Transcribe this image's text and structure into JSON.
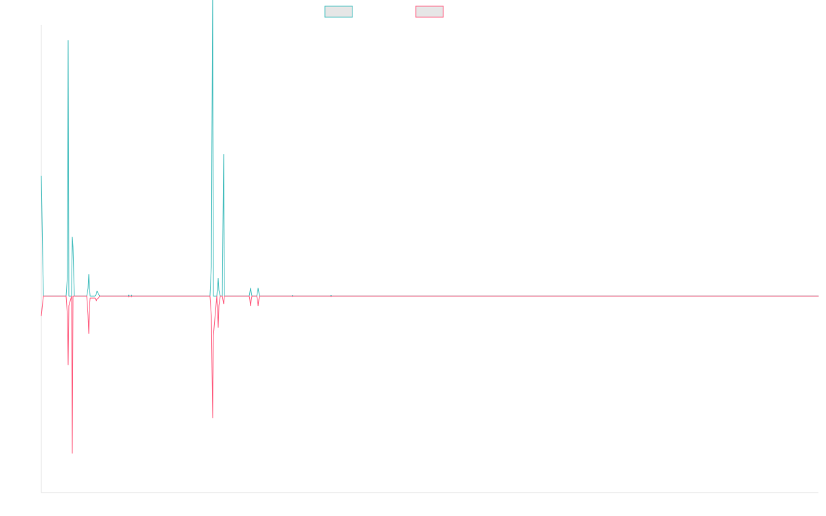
{
  "chart_data": {
    "type": "line",
    "title": "",
    "xlabel": "",
    "ylabel": "",
    "grid": false,
    "legend_position": "top-center",
    "x_tick_labels_visible": false,
    "y_tick_labels_visible": false,
    "x": [
      0,
      1,
      2,
      3,
      4,
      5,
      6,
      7,
      8,
      9,
      10,
      11,
      12,
      13,
      14,
      15,
      16,
      17,
      18,
      19,
      20,
      21,
      22,
      23,
      24,
      25,
      26,
      27,
      28,
      29,
      30,
      31,
      32,
      33,
      34,
      35,
      36,
      37,
      38,
      39,
      40,
      41,
      42,
      43,
      44,
      45,
      46,
      47,
      48,
      49,
      50,
      51,
      52,
      53,
      54,
      55,
      56,
      57,
      58,
      59,
      60,
      61,
      62,
      63,
      64,
      65,
      66,
      67,
      68,
      69,
      70,
      71,
      72,
      73,
      74,
      75,
      76,
      77,
      78,
      79,
      80,
      81,
      82,
      83,
      84,
      85,
      86,
      87,
      88,
      89,
      90,
      91,
      92,
      93,
      94,
      95,
      96,
      97,
      98,
      99,
      100,
      101,
      102,
      103,
      104,
      105,
      106,
      107,
      108,
      109,
      110,
      111,
      112,
      113,
      114,
      115,
      116,
      117,
      118,
      119,
      120,
      121,
      122,
      123,
      124,
      125,
      126,
      127,
      128,
      129,
      130,
      131,
      132,
      133,
      134,
      135,
      136,
      137,
      138,
      139,
      140,
      141,
      142,
      143,
      144,
      145,
      146,
      147,
      148,
      149,
      150,
      151,
      152,
      153,
      154,
      155,
      156,
      157,
      158,
      159,
      160,
      161,
      162,
      163,
      164,
      165,
      166,
      167,
      168,
      169,
      170,
      171,
      172,
      173,
      174,
      175,
      176,
      177,
      178,
      179,
      180,
      181,
      182,
      183,
      184,
      185,
      186,
      187,
      188,
      189,
      190,
      191,
      192,
      193,
      194,
      195,
      196,
      197,
      198,
      199,
      200,
      201,
      202,
      203,
      204,
      205,
      206,
      207,
      208,
      209,
      210,
      211,
      212,
      213,
      214,
      215,
      216,
      217,
      218,
      219,
      220,
      221,
      222,
      223,
      224,
      225,
      226,
      227,
      228,
      229,
      230,
      231,
      232,
      233,
      234,
      235,
      236,
      237,
      238,
      239,
      240,
      241,
      242,
      243,
      244,
      245,
      246,
      247,
      248,
      249,
      250,
      251,
      252,
      253,
      254,
      255,
      256,
      257,
      258,
      259,
      260,
      261,
      262,
      263,
      264,
      265,
      266,
      267,
      268,
      269,
      270,
      271,
      272,
      273,
      274,
      275,
      276,
      277,
      278,
      279,
      280,
      281,
      282,
      283,
      284,
      285,
      286,
      287,
      288,
      289,
      290,
      291,
      292,
      293,
      294,
      295,
      296,
      297,
      298,
      299,
      300,
      301,
      302,
      303,
      304,
      305,
      306,
      307,
      308,
      309,
      310,
      311,
      312,
      313,
      314,
      315,
      316,
      317,
      318,
      319,
      320,
      321,
      322,
      323,
      324,
      325,
      326,
      327,
      328,
      329,
      330,
      331,
      332,
      333,
      334,
      335,
      336,
      337,
      338,
      339,
      340,
      341,
      342,
      343,
      344,
      345,
      346,
      347,
      348,
      349,
      350,
      351,
      352,
      353,
      354,
      355,
      356,
      357,
      358,
      359,
      360,
      361,
      362,
      363,
      364,
      365,
      366,
      367,
      368,
      369,
      370,
      371,
      372,
      373,
      374,
      375,
      376,
      377,
      378,
      379,
      380,
      381,
      382,
      383,
      384,
      385,
      386,
      387,
      388,
      389,
      390,
      391,
      392,
      393,
      394,
      395,
      396,
      397,
      398,
      399,
      400,
      401,
      402,
      403,
      404,
      405,
      406,
      407,
      408,
      409,
      410,
      411,
      412,
      413,
      414,
      415,
      416,
      417,
      418,
      419,
      420,
      421,
      422,
      423,
      424,
      425,
      426,
      427,
      428,
      429,
      430,
      431,
      432,
      433,
      434,
      435,
      436,
      437,
      438,
      439,
      440,
      441,
      442,
      443,
      444,
      445,
      446,
      447,
      448,
      449,
      450,
      451,
      452,
      453,
      454,
      455,
      456,
      457,
      458,
      459,
      460,
      461,
      462,
      463,
      464,
      465,
      466,
      467,
      468,
      469,
      470,
      471,
      472,
      473,
      474,
      475,
      476,
      477,
      478,
      479,
      480,
      481,
      482,
      483,
      484,
      485,
      486,
      487,
      488,
      489,
      490,
      491,
      492,
      493,
      494,
      495,
      496,
      497,
      498,
      499,
      500,
      501,
      502,
      503,
      504,
      505,
      506,
      507,
      508,
      509,
      510,
      511,
      512,
      513,
      514,
      515,
      516,
      517,
      518,
      519,
      520,
      521,
      522,
      523,
      524,
      525,
      526,
      527,
      528,
      529,
      530,
      531,
      532,
      533,
      534,
      535,
      536,
      537,
      538,
      539,
      540,
      541,
      542,
      543,
      544,
      545,
      546,
      547,
      548,
      549,
      550,
      551,
      552,
      553,
      554,
      555,
      556,
      557,
      558,
      559,
      560,
      561,
      562,
      563,
      564,
      565,
      566,
      567,
      568,
      569,
      570,
      571,
      572,
      573,
      574,
      575,
      576,
      577,
      578,
      579,
      580,
      581,
      582,
      583,
      584,
      585,
      586,
      587,
      588,
      589,
      590,
      591,
      592,
      593,
      594,
      595,
      596,
      597,
      598,
      599,
      600,
      601,
      602,
      603,
      604,
      605,
      606,
      607,
      608,
      609,
      610,
      611,
      612,
      613,
      614,
      615,
      616,
      617,
      618,
      619,
      620,
      621,
      622,
      623,
      624,
      625,
      626,
      627,
      628,
      629,
      630,
      631,
      632,
      633,
      634,
      635,
      636,
      637,
      638,
      639,
      640,
      641,
      642,
      643,
      644,
      645,
      646,
      647,
      648,
      649,
      650,
      651,
      652,
      653,
      654,
      655,
      656,
      657,
      658,
      659,
      660,
      661,
      662,
      663,
      664,
      665,
      666,
      667,
      668,
      669,
      670,
      671,
      672,
      673,
      674,
      675,
      676,
      677,
      678,
      679,
      680,
      681,
      682,
      683,
      684,
      685,
      686,
      687,
      688,
      689,
      690,
      691,
      692,
      693,
      694,
      695,
      696,
      697,
      698,
      699,
      700,
      701,
      702,
      703,
      704,
      705,
      706,
      707,
      708,
      709,
      710,
      711,
      712,
      713,
      714,
      715,
      716,
      717,
      718,
      719,
      720,
      721,
      722,
      723,
      724,
      725,
      726,
      727,
      728,
      729,
      730,
      731,
      732,
      733,
      734,
      735,
      736,
      737,
      738,
      739,
      740,
      741,
      742,
      743,
      744,
      745,
      746,
      747,
      748,
      749,
      750,
      751,
      752,
      753,
      754,
      755,
      756,
      757,
      758,
      759,
      760,
      761,
      762,
      763,
      764,
      765,
      766,
      767,
      768,
      769,
      770,
      771,
      772,
      773,
      774,
      775,
      776,
      777,
      778,
      779,
      780,
      781,
      782,
      783,
      784,
      785,
      786,
      787,
      788,
      789,
      790,
      791,
      792,
      793,
      794,
      795,
      796,
      797,
      798,
      799,
      800,
      801,
      802,
      803,
      804,
      805,
      806,
      807,
      808,
      809,
      810,
      811,
      812,
      813,
      814,
      815,
      816,
      817,
      818,
      819,
      820,
      821,
      822,
      823,
      824,
      825,
      826,
      827,
      828,
      829,
      830,
      831,
      832,
      833,
      834,
      835,
      836,
      837,
      838,
      839,
      840,
      841,
      842,
      843,
      844,
      845,
      846,
      847,
      848,
      849,
      850,
      851,
      852,
      853,
      854,
      855,
      856,
      857,
      858,
      859,
      860,
      861,
      862,
      863,
      864,
      865,
      866,
      867,
      868,
      869,
      870,
      871,
      872,
      873,
      874,
      875,
      876,
      877,
      878,
      879,
      880,
      881,
      882,
      883,
      884,
      885,
      886,
      887,
      888,
      889,
      890,
      891,
      892,
      893,
      894,
      895,
      896,
      897,
      898,
      899,
      900,
      901,
      902,
      903,
      904,
      905,
      906,
      907,
      908,
      909,
      910,
      911,
      912,
      913,
      914,
      915,
      916,
      917,
      918,
      919,
      920,
      921,
      922,
      923,
      924,
      925,
      926,
      927,
      928,
      929,
      930,
      931,
      932,
      933,
      934,
      935,
      936,
      937,
      938,
      939,
      940,
      941,
      942,
      943,
      944,
      945,
      946,
      947,
      948,
      949,
      950,
      951,
      952,
      953,
      954,
      955,
      956,
      957,
      958,
      959,
      960,
      961,
      962,
      963,
      964,
      965,
      966,
      967,
      968,
      969,
      970,
      971,
      972,
      973,
      974,
      975,
      976,
      977,
      978,
      979,
      980,
      981,
      982,
      983,
      984,
      985,
      986,
      987,
      988,
      989,
      990,
      991,
      992,
      993,
      994,
      995,
      996,
      997,
      998,
      999,
      1000,
      1001,
      1002,
      1003,
      1004,
      1005,
      1006,
      1007,
      1008,
      1009,
      1010,
      1011,
      1012,
      1013,
      1014,
      1015,
      1016,
      1017,
      1018,
      1019,
      1020,
      1021,
      1022,
      1023,
      1024,
      1025,
      1026,
      1027,
      1028,
      1029,
      1030,
      1031,
      1032,
      1033,
      1034,
      1035,
      1036,
      1037,
      1038,
      1039,
      1040,
      1041,
      1042,
      1043,
      1044,
      1045,
      1046,
      1047,
      1048,
      1049,
      1050,
      1051,
      1052,
      1053,
      1054,
      1055,
      1056,
      1057,
      1058,
      1059,
      1060,
      1061,
      1062,
      1063,
      1064,
      1065,
      1066,
      1067,
      1068,
      1069,
      1070,
      1071,
      1072,
      1073,
      1074,
      1075,
      1076,
      1077,
      1078,
      1079,
      1080,
      1081,
      1082,
      1083,
      1084,
      1085,
      1086,
      1087,
      1088,
      1089,
      1090,
      1091,
      1092,
      1093,
      1094,
      1095,
      1096,
      1097,
      1098,
      1099,
      1100,
      1101,
      1102,
      1103,
      1104,
      1105,
      1106,
      1107,
      1108,
      1109,
      1110,
      1111,
      1112,
      1113,
      1114,
      1115,
      1116,
      1117,
      1118,
      1119,
      1120,
      1121,
      1122,
      1123,
      1124,
      1125,
      1126,
      1127,
      1128,
      1129
    ],
    "xlim": [
      0,
      1129
    ],
    "ylim": [
      -100,
      138
    ],
    "series": [
      {
        "name": "",
        "color": "#4bc0c0",
        "legend_fill": "#e6e6e6",
        "baseline": 0,
        "points": [
          [
            0,
            61
          ],
          [
            3,
            0
          ],
          [
            36,
            0
          ],
          [
            38,
            10
          ],
          [
            39,
            130
          ],
          [
            40,
            0
          ],
          [
            44,
            0
          ],
          [
            45,
            30
          ],
          [
            46,
            25
          ],
          [
            48,
            0
          ],
          [
            66,
            0
          ],
          [
            68,
            4
          ],
          [
            69,
            11
          ],
          [
            70,
            4
          ],
          [
            71,
            0
          ],
          [
            78,
            0
          ],
          [
            80,
            1
          ],
          [
            81,
            2.5
          ],
          [
            83,
            1
          ],
          [
            85,
            0
          ],
          [
            126,
            0
          ],
          [
            127,
            0.5
          ],
          [
            128,
            0
          ],
          [
            130,
            0
          ],
          [
            131,
            0.5
          ],
          [
            132,
            0
          ],
          [
            245,
            0
          ],
          [
            247,
            15
          ],
          [
            249,
            158
          ],
          [
            250,
            0
          ],
          [
            255,
            0
          ],
          [
            257,
            9
          ],
          [
            258,
            3
          ],
          [
            260,
            0
          ],
          [
            263,
            0
          ],
          [
            265,
            72
          ],
          [
            266,
            0
          ],
          [
            302,
            0
          ],
          [
            303,
            2
          ],
          [
            304,
            4
          ],
          [
            305,
            2
          ],
          [
            306,
            0
          ],
          [
            313,
            0
          ],
          [
            314,
            2
          ],
          [
            315,
            4
          ],
          [
            316,
            2
          ],
          [
            317,
            0
          ],
          [
            364,
            0
          ],
          [
            365,
            0.3
          ],
          [
            366,
            0
          ],
          [
            420,
            0
          ],
          [
            421,
            0.3
          ],
          [
            422,
            0
          ],
          [
            1129,
            0
          ]
        ]
      },
      {
        "name": "",
        "color": "#ff6384",
        "legend_fill": "#e6e6e6",
        "baseline": 0,
        "points": [
          [
            0,
            -10
          ],
          [
            3,
            0
          ],
          [
            36,
            0
          ],
          [
            38,
            -10
          ],
          [
            39,
            -35
          ],
          [
            40,
            -5
          ],
          [
            44,
            0
          ],
          [
            45,
            -80
          ],
          [
            46,
            0
          ],
          [
            66,
            0
          ],
          [
            68,
            -10
          ],
          [
            69,
            -19
          ],
          [
            70,
            -5
          ],
          [
            71,
            -1
          ],
          [
            78,
            -1
          ],
          [
            80,
            -2.5
          ],
          [
            81,
            -1.5
          ],
          [
            83,
            -1
          ],
          [
            85,
            0
          ],
          [
            126,
            0
          ],
          [
            127,
            -0.5
          ],
          [
            128,
            0
          ],
          [
            130,
            0
          ],
          [
            131,
            -0.5
          ],
          [
            132,
            0
          ],
          [
            245,
            0
          ],
          [
            247,
            -10
          ],
          [
            249,
            -62
          ],
          [
            250,
            -20
          ],
          [
            255,
            0
          ],
          [
            257,
            -16
          ],
          [
            258,
            -5
          ],
          [
            260,
            0
          ],
          [
            263,
            0
          ],
          [
            265,
            -4
          ],
          [
            266,
            0
          ],
          [
            302,
            0
          ],
          [
            303,
            -2
          ],
          [
            304,
            -5
          ],
          [
            305,
            -2
          ],
          [
            306,
            0
          ],
          [
            313,
            0
          ],
          [
            314,
            -2
          ],
          [
            315,
            -5
          ],
          [
            316,
            -2
          ],
          [
            317,
            0
          ],
          [
            364,
            0
          ],
          [
            365,
            -0.3
          ],
          [
            366,
            0
          ],
          [
            420,
            0
          ],
          [
            421,
            -0.3
          ],
          [
            422,
            0
          ],
          [
            1129,
            0
          ]
        ]
      }
    ]
  }
}
